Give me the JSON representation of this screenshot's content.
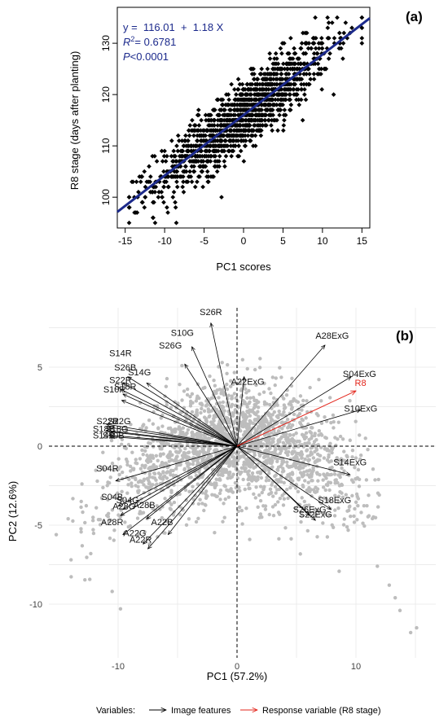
{
  "chart_data": [
    {
      "panel_label": "(a)",
      "type": "scatter",
      "title": "",
      "xlabel": "PC1 scores",
      "ylabel": "R8 stage (days after planting)",
      "xlim": [
        -16,
        16
      ],
      "ylim": [
        94,
        137
      ],
      "x_ticks": [
        "-15",
        "-10",
        "-5",
        "0",
        "5",
        "10",
        "15"
      ],
      "y_ticks": [
        "100",
        "110",
        "120",
        "130"
      ],
      "grid": false,
      "regression": {
        "intercept": 116.01,
        "slope": 1.18,
        "equation": [
          "y =  116.01  +  1.18 X"
        ],
        "r2_label": "R",
        "r2_value": "= 0.6781",
        "p_label": "P",
        "p_value": "<0.0001",
        "color": "#1c2a8c"
      },
      "points_note": "dense cloud of individual genotype points; values sampled along the fitted trend",
      "point_color": "#000000"
    },
    {
      "panel_label": "(b)",
      "type": "biplot",
      "title": "",
      "xlabel": "PC1 (57.2%)",
      "ylabel": "PC2 (12.6%)",
      "xlim": [
        -16,
        16
      ],
      "ylim": [
        -12,
        8
      ],
      "x_ticks": [
        "-10",
        "0",
        "10"
      ],
      "y_ticks": [
        "-10",
        "-5",
        "0",
        "5"
      ],
      "grid": true,
      "point_color": "#bdbdbd",
      "loadings": [
        {
          "name": "S26R",
          "x": -2.2,
          "y": 7.8,
          "lx": -2.2,
          "ly": 8.5
        },
        {
          "name": "S10G",
          "x": -3.8,
          "y": 6.3,
          "lx": -4.6,
          "ly": 7.2
        },
        {
          "name": "S26G",
          "x": -4.4,
          "y": 5.2,
          "lx": -5.6,
          "ly": 6.4
        },
        {
          "name": "S14R",
          "x": -9.2,
          "y": 4.4,
          "lx": -9.8,
          "ly": 5.9
        },
        {
          "name": "S26B",
          "x": -9.6,
          "y": 4.0,
          "lx": -9.4,
          "ly": 5.0
        },
        {
          "name": "S14G",
          "x": -7.6,
          "y": 4.0,
          "lx": -8.2,
          "ly": 4.7
        },
        {
          "name": "S22R",
          "x": -9.8,
          "y": 3.6,
          "lx": -9.8,
          "ly": 4.2
        },
        {
          "name": "S18R",
          "x": -9.6,
          "y": 3.3,
          "lx": -9.4,
          "ly": 3.8
        },
        {
          "name": "S10R",
          "x": -9.7,
          "y": 2.9,
          "lx": -10.3,
          "ly": 3.6
        },
        {
          "name": "S22B",
          "x": -11.0,
          "y": 1.4,
          "lx": -10.9,
          "ly": 1.6
        },
        {
          "name": "S22G",
          "x": -10.8,
          "y": 1.2,
          "lx": -9.9,
          "ly": 1.6
        },
        {
          "name": "S18B",
          "x": -11.0,
          "y": 1.0,
          "lx": -11.2,
          "ly": 1.1
        },
        {
          "name": "S18G",
          "x": -10.6,
          "y": 0.9,
          "lx": -10.1,
          "ly": 1.1
        },
        {
          "name": "S14B",
          "x": -10.8,
          "y": 0.7,
          "lx": -11.2,
          "ly": 0.7
        },
        {
          "name": "S10B",
          "x": -10.6,
          "y": 0.6,
          "lx": -10.4,
          "ly": 0.7
        },
        {
          "name": "S04R",
          "x": -10.2,
          "y": -2.2,
          "lx": -10.9,
          "ly": -1.4
        },
        {
          "name": "S04B",
          "x": -10.0,
          "y": -3.8,
          "lx": -10.5,
          "ly": -3.2
        },
        {
          "name": "S04G",
          "x": -9.6,
          "y": -4.0,
          "lx": -9.2,
          "ly": -3.4
        },
        {
          "name": "A28G",
          "x": -9.8,
          "y": -4.4,
          "lx": -9.5,
          "ly": -3.8
        },
        {
          "name": "A28B",
          "x": -7.6,
          "y": -4.6,
          "lx": -7.8,
          "ly": -3.7
        },
        {
          "name": "A28R",
          "x": -9.6,
          "y": -5.6,
          "lx": -10.5,
          "ly": -4.8
        },
        {
          "name": "A22B",
          "x": -5.8,
          "y": -5.6,
          "lx": -6.3,
          "ly": -4.8
        },
        {
          "name": "A22G",
          "x": -7.9,
          "y": -6.2,
          "lx": -8.6,
          "ly": -5.5
        },
        {
          "name": "A22R",
          "x": -7.5,
          "y": -6.5,
          "lx": -8.1,
          "ly": -5.9
        },
        {
          "name": "A28ExG",
          "x": 7.4,
          "y": 6.4,
          "lx": 8.0,
          "ly": 7.0
        },
        {
          "name": "A22ExG",
          "x": 0.6,
          "y": 4.4,
          "lx": 0.9,
          "ly": 4.1
        },
        {
          "name": "S04ExG",
          "x": 9.6,
          "y": 4.4,
          "lx": 10.3,
          "ly": 4.6
        },
        {
          "name": "S10ExG",
          "x": 10.4,
          "y": 2.3,
          "lx": 10.4,
          "ly": 2.4
        },
        {
          "name": "S14ExG",
          "x": 9.5,
          "y": -1.8,
          "lx": 9.5,
          "ly": -1.0
        },
        {
          "name": "S18ExG",
          "x": 7.9,
          "y": -4.0,
          "lx": 8.2,
          "ly": -3.4
        },
        {
          "name": "S26ExG",
          "x": 6.1,
          "y": -4.4,
          "lx": 6.1,
          "ly": -4.0
        },
        {
          "name": "S22ExG",
          "x": 6.6,
          "y": -4.7,
          "lx": 6.6,
          "ly": -4.3
        }
      ],
      "response": {
        "name": "R8",
        "x": 10.0,
        "y": 3.5,
        "lx": 9.9,
        "ly": 3.5,
        "color": "#e3251b"
      },
      "legend": {
        "placement": "bottom",
        "title": "Variables:",
        "entries": [
          {
            "label": "Image features",
            "color": "#000000"
          },
          {
            "label": "Response variable (R8 stage)",
            "color": "#e3251b"
          }
        ]
      }
    }
  ]
}
